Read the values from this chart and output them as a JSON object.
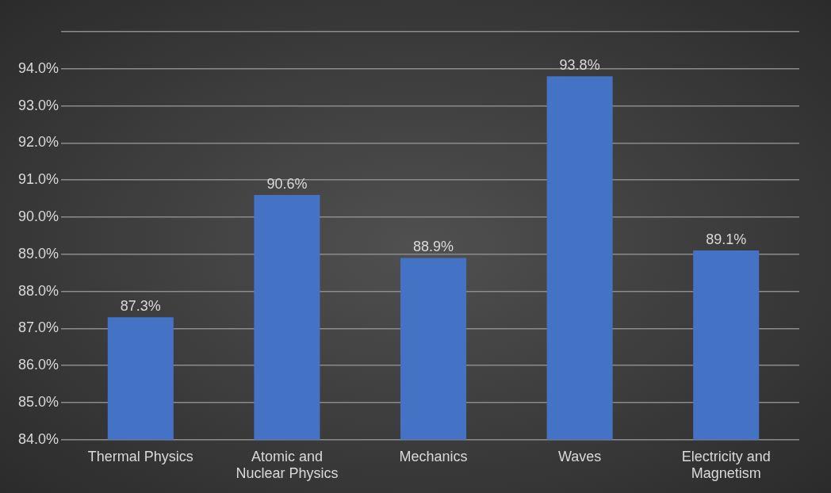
{
  "chart_data": {
    "type": "bar",
    "categories": [
      "Thermal Physics",
      "Atomic and Nuclear Physics",
      "Mechanics",
      "Waves",
      "Electricity and Magnetism"
    ],
    "values": [
      87.3,
      90.6,
      88.9,
      93.8,
      89.1
    ],
    "value_labels": [
      "87.3%",
      "90.6%",
      "88.9%",
      "93.8%",
      "89.1%"
    ],
    "color": "#4472c4",
    "ylim": [
      84,
      95
    ],
    "yticks": [
      {
        "value": 84,
        "label": "84.0%"
      },
      {
        "value": 85,
        "label": "85.0%"
      },
      {
        "value": 86,
        "label": "86.0%"
      },
      {
        "value": 87,
        "label": "87.0%"
      },
      {
        "value": 88,
        "label": "88.0%"
      },
      {
        "value": 89,
        "label": "89.0%"
      },
      {
        "value": 90,
        "label": "90.0%"
      },
      {
        "value": 91,
        "label": "91.0%"
      },
      {
        "value": 92,
        "label": "92.0%"
      },
      {
        "value": 93,
        "label": "93.0%"
      },
      {
        "value": 94,
        "label": "94.0%"
      },
      {
        "value": 95,
        "label": null
      }
    ],
    "grid": "y",
    "legend": false
  }
}
